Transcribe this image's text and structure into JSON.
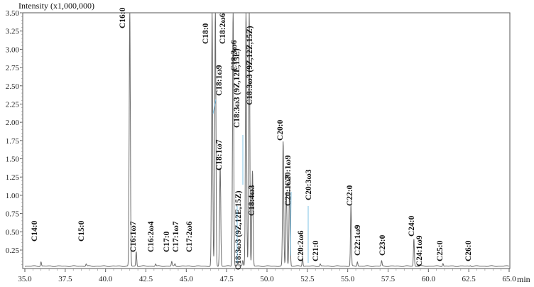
{
  "chart_data": {
    "type": "line",
    "title": "",
    "xlabel": "min",
    "ylabel": "Intensity (x1,000,000)",
    "xlim": [
      35.0,
      65.0
    ],
    "ylim": [
      0,
      3.5
    ],
    "x_ticks": [
      "35.0",
      "37.5",
      "40.0",
      "42.5",
      "45.0",
      "47.5",
      "50.0",
      "52.5",
      "55.0",
      "57.5",
      "60.0",
      "62.5",
      "65.0"
    ],
    "y_ticks": [
      "0.25",
      "0.50",
      "0.75",
      "1.00",
      "1.25",
      "1.50",
      "1.75",
      "2.00",
      "2.25",
      "2.50",
      "2.75",
      "3.00",
      "3.25",
      "3.50"
    ],
    "grid": false,
    "legend": null,
    "baseline": 0.03,
    "peaks": [
      {
        "label": "C14:0",
        "rt": 36.0,
        "height": 0.09
      },
      {
        "label": "C15:0",
        "rt": 38.8,
        "height": 0.06
      },
      {
        "label": "C16:0",
        "rt": 41.5,
        "height": 3.5
      },
      {
        "label": "C16:1ω7",
        "rt": 41.9,
        "height": 0.23
      },
      {
        "label": "C16:2ω4",
        "rt": 43.1,
        "height": 0.06
      },
      {
        "label": "C17:0",
        "rt": 44.1,
        "height": 0.09
      },
      {
        "label": "C17:1ω7",
        "rt": 44.3,
        "height": 0.06
      },
      {
        "label": "C17:2ω6",
        "rt": 45.3,
        "height": 0.03
      },
      {
        "label": "C18:0",
        "rt": 46.6,
        "height": 3.5
      },
      {
        "label": "C18:1ω9",
        "rt": 46.8,
        "height": 3.5
      },
      {
        "label": "C18:1ω7",
        "rt": 47.1,
        "height": 1.38
      },
      {
        "label": "C18:2ω6",
        "rt": 47.9,
        "height": 3.5
      },
      {
        "label": "C18:3ω3 (9Z,12E,15Z)",
        "rt": 48.2,
        "height": 0.08
      },
      {
        "label": "C18:3ω3 (9Z,12E,15E)",
        "rt": 48.5,
        "height": 0.1
      },
      {
        "label": "C18:3ω6",
        "rt": 48.7,
        "height": 3.5
      },
      {
        "label": "C18:3ω3 (9Z,12Z,15Z)",
        "rt": 48.9,
        "height": 3.5
      },
      {
        "label": "C18:4ω3",
        "rt": 49.1,
        "height": 1.33
      },
      {
        "label": "C20:0",
        "rt": 51.0,
        "height": 1.73
      },
      {
        "label": "C20:1ω9",
        "rt": 51.2,
        "height": 1.05
      },
      {
        "label": "C20:1ω7",
        "rt": 51.4,
        "height": 1.12
      },
      {
        "label": "C20:2ω6",
        "rt": 52.2,
        "height": 0.14
      },
      {
        "label": "C20:3ω3",
        "rt": 52.7,
        "height": 0.03
      },
      {
        "label": "C21:0",
        "rt": 53.3,
        "height": 0.06
      },
      {
        "label": "C22:0",
        "rt": 55.2,
        "height": 0.87
      },
      {
        "label": "C22:1ω9",
        "rt": 55.6,
        "height": 0.09
      },
      {
        "label": "C23:0",
        "rt": 57.1,
        "height": 0.1
      },
      {
        "label": "C24:0",
        "rt": 59.1,
        "height": 0.4
      },
      {
        "label": "C24:1ω9",
        "rt": 59.5,
        "height": 0.05
      },
      {
        "label": "C25:0",
        "rt": 60.9,
        "height": 0.07
      },
      {
        "label": "C26:0",
        "rt": 62.6,
        "height": 0.04
      }
    ],
    "colors": {
      "trace": "#6a6a6a",
      "axis": "#555555",
      "label": "#111111",
      "leader": "#5fb4e0"
    }
  },
  "axis": {
    "y_title": "Intensity (x1,000,000)",
    "x_unit": "min"
  }
}
